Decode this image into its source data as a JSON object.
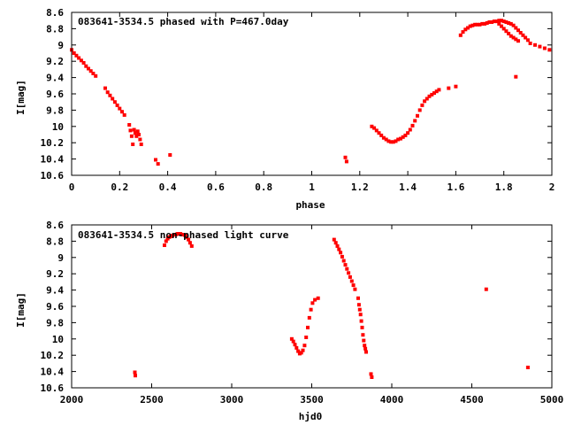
{
  "colors": {
    "points": "#ff0000",
    "frame": "#000000",
    "background": "#ffffff"
  },
  "chart_data": [
    {
      "type": "scatter",
      "title": "083641-3534.5 phased with P=467.0day",
      "xlabel": "phase",
      "ylabel": "I[mag]",
      "xlim": [
        0,
        2
      ],
      "ylim": [
        10.6,
        8.6
      ],
      "y_inverted": true,
      "x_ticks": [
        0,
        0.2,
        0.4,
        0.6,
        0.8,
        1,
        1.2,
        1.4,
        1.6,
        1.8,
        2
      ],
      "x_tick_labels": [
        "0",
        "0.2",
        "0.4",
        "0.6",
        "0.8",
        "1",
        "1.2",
        "1.4",
        "1.6",
        "1.8",
        "2"
      ],
      "y_ticks": [
        8.6,
        8.8,
        9,
        9.2,
        9.4,
        9.6,
        9.8,
        10,
        10.2,
        10.4,
        10.6
      ],
      "y_tick_labels": [
        "8.6",
        "8.8",
        "9",
        "9.2",
        "9.4",
        "9.6",
        "9.8",
        "10",
        "10.2",
        "10.4",
        "10.6"
      ],
      "grid": false,
      "series": [
        {
          "values": [
            [
              0.0,
              9.06
            ],
            [
              0.01,
              9.1
            ],
            [
              0.02,
              9.13
            ],
            [
              0.03,
              9.16
            ],
            [
              0.04,
              9.19
            ],
            [
              0.05,
              9.22
            ],
            [
              0.06,
              9.26
            ],
            [
              0.07,
              9.29
            ],
            [
              0.08,
              9.32
            ],
            [
              0.09,
              9.35
            ],
            [
              0.1,
              9.38
            ],
            [
              0.14,
              9.53
            ],
            [
              0.15,
              9.58
            ],
            [
              0.16,
              9.62
            ],
            [
              0.17,
              9.66
            ],
            [
              0.18,
              9.7
            ],
            [
              0.19,
              9.74
            ],
            [
              0.2,
              9.78
            ],
            [
              0.21,
              9.82
            ],
            [
              0.22,
              9.86
            ],
            [
              0.24,
              9.98
            ],
            [
              0.245,
              10.05
            ],
            [
              0.25,
              10.12
            ],
            [
              0.255,
              10.22
            ],
            [
              0.26,
              10.04
            ],
            [
              0.265,
              10.08
            ],
            [
              0.27,
              10.12
            ],
            [
              0.275,
              10.06
            ],
            [
              0.28,
              10.1
            ],
            [
              0.285,
              10.16
            ],
            [
              0.29,
              10.22
            ],
            [
              0.35,
              10.41
            ],
            [
              0.36,
              10.46
            ],
            [
              0.41,
              10.35
            ],
            [
              1.14,
              10.38
            ],
            [
              1.145,
              10.43
            ],
            [
              1.25,
              10.0
            ],
            [
              1.26,
              10.02
            ],
            [
              1.27,
              10.05
            ],
            [
              1.28,
              10.08
            ],
            [
              1.29,
              10.11
            ],
            [
              1.3,
              10.14
            ],
            [
              1.31,
              10.16
            ],
            [
              1.32,
              10.18
            ],
            [
              1.33,
              10.19
            ],
            [
              1.34,
              10.19
            ],
            [
              1.35,
              10.18
            ],
            [
              1.36,
              10.16
            ],
            [
              1.37,
              10.15
            ],
            [
              1.38,
              10.13
            ],
            [
              1.39,
              10.11
            ],
            [
              1.4,
              10.08
            ],
            [
              1.41,
              10.04
            ],
            [
              1.42,
              9.99
            ],
            [
              1.43,
              9.93
            ],
            [
              1.44,
              9.87
            ],
            [
              1.45,
              9.8
            ],
            [
              1.46,
              9.74
            ],
            [
              1.47,
              9.69
            ],
            [
              1.48,
              9.66
            ],
            [
              1.49,
              9.63
            ],
            [
              1.5,
              9.61
            ],
            [
              1.51,
              9.59
            ],
            [
              1.52,
              9.57
            ],
            [
              1.53,
              9.55
            ],
            [
              1.57,
              9.53
            ],
            [
              1.6,
              9.51
            ],
            [
              1.62,
              8.88
            ],
            [
              1.63,
              8.84
            ],
            [
              1.64,
              8.81
            ],
            [
              1.65,
              8.79
            ],
            [
              1.66,
              8.77
            ],
            [
              1.67,
              8.76
            ],
            [
              1.68,
              8.75
            ],
            [
              1.69,
              8.75
            ],
            [
              1.7,
              8.75
            ],
            [
              1.71,
              8.74
            ],
            [
              1.72,
              8.74
            ],
            [
              1.73,
              8.73
            ],
            [
              1.74,
              8.72
            ],
            [
              1.75,
              8.72
            ],
            [
              1.76,
              8.71
            ],
            [
              1.77,
              8.71
            ],
            [
              1.78,
              8.7
            ],
            [
              1.79,
              8.7
            ],
            [
              1.8,
              8.71
            ],
            [
              1.81,
              8.72
            ],
            [
              1.82,
              8.73
            ],
            [
              1.83,
              8.74
            ],
            [
              1.84,
              8.76
            ],
            [
              1.85,
              8.79
            ],
            [
              1.86,
              8.82
            ],
            [
              1.87,
              8.85
            ],
            [
              1.88,
              8.88
            ],
            [
              1.89,
              8.91
            ],
            [
              1.9,
              8.94
            ],
            [
              1.78,
              8.74
            ],
            [
              1.79,
              8.77
            ],
            [
              1.8,
              8.8
            ],
            [
              1.81,
              8.83
            ],
            [
              1.82,
              8.86
            ],
            [
              1.83,
              8.89
            ],
            [
              1.84,
              8.91
            ],
            [
              1.85,
              8.93
            ],
            [
              1.86,
              8.95
            ],
            [
              1.85,
              9.39
            ],
            [
              1.91,
              8.98
            ],
            [
              1.93,
              9.0
            ],
            [
              1.95,
              9.02
            ],
            [
              1.97,
              9.04
            ],
            [
              1.99,
              9.06
            ]
          ]
        }
      ]
    },
    {
      "type": "scatter",
      "title": "083641-3534.5 non-phased light curve",
      "xlabel": "hjd0",
      "ylabel": "I[mag]",
      "xlim": [
        2000,
        5000
      ],
      "ylim": [
        10.6,
        8.6
      ],
      "y_inverted": true,
      "x_ticks": [
        2000,
        2500,
        3000,
        3500,
        4000,
        4500,
        5000
      ],
      "x_tick_labels": [
        "2000",
        "2500",
        "3000",
        "3500",
        "4000",
        "4500",
        "5000"
      ],
      "y_ticks": [
        8.6,
        8.8,
        9,
        9.2,
        9.4,
        9.6,
        9.8,
        10,
        10.2,
        10.4,
        10.6
      ],
      "y_tick_labels": [
        "8.6",
        "8.8",
        "9",
        "9.2",
        "9.4",
        "9.6",
        "9.8",
        "10",
        "10.2",
        "10.4",
        "10.6"
      ],
      "grid": false,
      "series": [
        {
          "values": [
            [
              2395,
              10.41
            ],
            [
              2398,
              10.45
            ],
            [
              2580,
              8.85
            ],
            [
              2590,
              8.8
            ],
            [
              2600,
              8.77
            ],
            [
              2610,
              8.75
            ],
            [
              2620,
              8.74
            ],
            [
              2630,
              8.73
            ],
            [
              2640,
              8.72
            ],
            [
              2650,
              8.72
            ],
            [
              2660,
              8.71
            ],
            [
              2670,
              8.71
            ],
            [
              2680,
              8.71
            ],
            [
              2690,
              8.72
            ],
            [
              2700,
              8.72
            ],
            [
              2710,
              8.73
            ],
            [
              2720,
              8.75
            ],
            [
              2730,
              8.78
            ],
            [
              2740,
              8.82
            ],
            [
              2750,
              8.86
            ],
            [
              3375,
              10.0
            ],
            [
              3385,
              10.03
            ],
            [
              3395,
              10.07
            ],
            [
              3405,
              10.11
            ],
            [
              3415,
              10.15
            ],
            [
              3425,
              10.18
            ],
            [
              3435,
              10.17
            ],
            [
              3445,
              10.14
            ],
            [
              3455,
              10.08
            ],
            [
              3465,
              9.98
            ],
            [
              3475,
              9.86
            ],
            [
              3485,
              9.74
            ],
            [
              3495,
              9.64
            ],
            [
              3505,
              9.56
            ],
            [
              3520,
              9.52
            ],
            [
              3540,
              9.5
            ],
            [
              3640,
              8.78
            ],
            [
              3650,
              8.82
            ],
            [
              3660,
              8.86
            ],
            [
              3670,
              8.9
            ],
            [
              3680,
              8.94
            ],
            [
              3690,
              8.99
            ],
            [
              3700,
              9.04
            ],
            [
              3710,
              9.09
            ],
            [
              3720,
              9.14
            ],
            [
              3730,
              9.19
            ],
            [
              3740,
              9.24
            ],
            [
              3750,
              9.29
            ],
            [
              3760,
              9.34
            ],
            [
              3770,
              9.39
            ],
            [
              3790,
              9.5
            ],
            [
              3795,
              9.58
            ],
            [
              3800,
              9.64
            ],
            [
              3805,
              9.7
            ],
            [
              3810,
              9.78
            ],
            [
              3815,
              9.86
            ],
            [
              3820,
              9.95
            ],
            [
              3825,
              10.02
            ],
            [
              3830,
              10.08
            ],
            [
              3835,
              10.12
            ],
            [
              3840,
              10.16
            ],
            [
              3870,
              10.43
            ],
            [
              3875,
              10.47
            ],
            [
              4590,
              9.39
            ],
            [
              4850,
              10.35
            ]
          ]
        }
      ]
    }
  ]
}
